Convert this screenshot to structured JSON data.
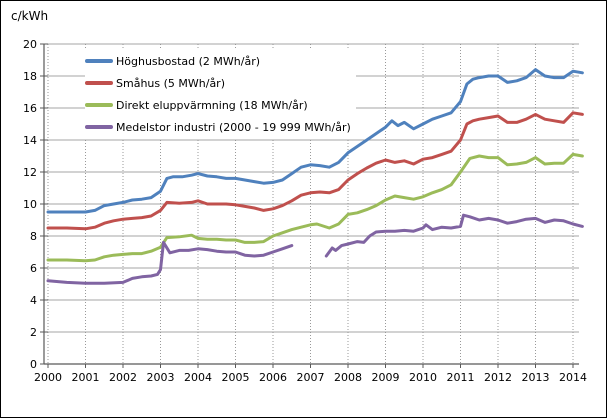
{
  "chart_data": {
    "type": "line",
    "title": "c/kWh",
    "ylabel": "c/kWh",
    "xlabel": "",
    "y_axis": {
      "min": 0,
      "max": 20,
      "tick_step": 2,
      "ticks": [
        0,
        2,
        4,
        6,
        8,
        10,
        12,
        14,
        16,
        18,
        20
      ]
    },
    "x_axis": {
      "min": 2000,
      "max": 2014.4,
      "ticks": [
        2000,
        2001,
        2002,
        2003,
        2004,
        2005,
        2006,
        2007,
        2008,
        2009,
        2010,
        2011,
        2012,
        2013,
        2014
      ]
    },
    "grid": {
      "horizontal": "solid",
      "vertical": "dotted"
    },
    "legend_position": "top-left-inside",
    "colors": {
      "gridline": "#a6a6a6",
      "vgridline": "#999999",
      "axis": "#595959",
      "text": "#000000"
    },
    "series": [
      {
        "name": "Höghusbostad (2 MWh/år)",
        "color": "#4F81BD",
        "segments": [
          [
            [
              2000,
              9.5
            ],
            [
              2000.25,
              9.5
            ],
            [
              2000.5,
              9.5
            ],
            [
              2000.75,
              9.5
            ],
            [
              2001,
              9.5
            ],
            [
              2001.25,
              9.6
            ],
            [
              2001.5,
              9.9
            ],
            [
              2001.75,
              10.0
            ],
            [
              2002,
              10.1
            ],
            [
              2002.25,
              10.25
            ],
            [
              2002.5,
              10.3
            ],
            [
              2002.75,
              10.4
            ],
            [
              2003,
              10.8
            ],
            [
              2003.17,
              11.6
            ],
            [
              2003.33,
              11.7
            ],
            [
              2003.58,
              11.7
            ],
            [
              2003.83,
              11.8
            ],
            [
              2004,
              11.9
            ],
            [
              2004.25,
              11.75
            ],
            [
              2004.5,
              11.7
            ],
            [
              2004.75,
              11.6
            ],
            [
              2005,
              11.6
            ],
            [
              2005.25,
              11.5
            ],
            [
              2005.5,
              11.4
            ],
            [
              2005.75,
              11.3
            ],
            [
              2006,
              11.35
            ],
            [
              2006.25,
              11.5
            ],
            [
              2006.5,
              11.9
            ],
            [
              2006.75,
              12.3
            ],
            [
              2007,
              12.45
            ],
            [
              2007.25,
              12.4
            ],
            [
              2007.5,
              12.3
            ],
            [
              2007.75,
              12.6
            ],
            [
              2008,
              13.2
            ],
            [
              2008.25,
              13.6
            ],
            [
              2008.5,
              14.0
            ],
            [
              2008.75,
              14.4
            ],
            [
              2009,
              14.8
            ],
            [
              2009.17,
              15.2
            ],
            [
              2009.33,
              14.9
            ],
            [
              2009.5,
              15.1
            ],
            [
              2009.75,
              14.7
            ],
            [
              2010,
              15.0
            ],
            [
              2010.25,
              15.3
            ],
            [
              2010.5,
              15.5
            ],
            [
              2010.75,
              15.7
            ],
            [
              2011,
              16.4
            ],
            [
              2011.17,
              17.5
            ],
            [
              2011.33,
              17.8
            ],
            [
              2011.5,
              17.9
            ],
            [
              2011.75,
              18.0
            ],
            [
              2012,
              18.0
            ],
            [
              2012.25,
              17.6
            ],
            [
              2012.5,
              17.7
            ],
            [
              2012.75,
              17.9
            ],
            [
              2013,
              18.4
            ],
            [
              2013.25,
              18.0
            ],
            [
              2013.5,
              17.9
            ],
            [
              2013.75,
              17.9
            ],
            [
              2014,
              18.3
            ],
            [
              2014.25,
              18.2
            ]
          ]
        ]
      },
      {
        "name": "Småhus (5 MWh/år)",
        "color": "#C0504D",
        "segments": [
          [
            [
              2000,
              8.5
            ],
            [
              2000.5,
              8.5
            ],
            [
              2001,
              8.45
            ],
            [
              2001.25,
              8.55
            ],
            [
              2001.5,
              8.8
            ],
            [
              2001.75,
              8.95
            ],
            [
              2002,
              9.05
            ],
            [
              2002.25,
              9.1
            ],
            [
              2002.5,
              9.15
            ],
            [
              2002.75,
              9.25
            ],
            [
              2003,
              9.6
            ],
            [
              2003.17,
              10.1
            ],
            [
              2003.5,
              10.05
            ],
            [
              2003.83,
              10.1
            ],
            [
              2004,
              10.2
            ],
            [
              2004.25,
              10.0
            ],
            [
              2004.5,
              10.0
            ],
            [
              2004.75,
              10.0
            ],
            [
              2005,
              9.95
            ],
            [
              2005.25,
              9.85
            ],
            [
              2005.5,
              9.75
            ],
            [
              2005.75,
              9.6
            ],
            [
              2006,
              9.7
            ],
            [
              2006.25,
              9.9
            ],
            [
              2006.5,
              10.2
            ],
            [
              2006.75,
              10.55
            ],
            [
              2007,
              10.7
            ],
            [
              2007.25,
              10.75
            ],
            [
              2007.5,
              10.7
            ],
            [
              2007.75,
              10.9
            ],
            [
              2008,
              11.5
            ],
            [
              2008.25,
              11.9
            ],
            [
              2008.5,
              12.25
            ],
            [
              2008.75,
              12.55
            ],
            [
              2009,
              12.75
            ],
            [
              2009.25,
              12.6
            ],
            [
              2009.5,
              12.7
            ],
            [
              2009.75,
              12.5
            ],
            [
              2010,
              12.8
            ],
            [
              2010.25,
              12.9
            ],
            [
              2010.5,
              13.1
            ],
            [
              2010.75,
              13.3
            ],
            [
              2011,
              14.0
            ],
            [
              2011.17,
              15.0
            ],
            [
              2011.33,
              15.2
            ],
            [
              2011.5,
              15.3
            ],
            [
              2011.75,
              15.4
            ],
            [
              2012,
              15.5
            ],
            [
              2012.25,
              15.1
            ],
            [
              2012.5,
              15.1
            ],
            [
              2012.75,
              15.3
            ],
            [
              2013,
              15.6
            ],
            [
              2013.25,
              15.3
            ],
            [
              2013.5,
              15.2
            ],
            [
              2013.75,
              15.1
            ],
            [
              2014,
              15.7
            ],
            [
              2014.25,
              15.6
            ]
          ]
        ]
      },
      {
        "name": "Direkt eluppvärmning (18 MWh/år)",
        "color": "#9BBB59",
        "segments": [
          [
            [
              2000,
              6.5
            ],
            [
              2000.5,
              6.5
            ],
            [
              2001,
              6.45
            ],
            [
              2001.25,
              6.5
            ],
            [
              2001.5,
              6.7
            ],
            [
              2001.75,
              6.8
            ],
            [
              2002,
              6.85
            ],
            [
              2002.25,
              6.9
            ],
            [
              2002.5,
              6.9
            ],
            [
              2002.75,
              7.05
            ],
            [
              2003,
              7.3
            ],
            [
              2003.17,
              7.9
            ],
            [
              2003.5,
              7.95
            ],
            [
              2003.83,
              8.05
            ],
            [
              2004,
              7.85
            ],
            [
              2004.25,
              7.8
            ],
            [
              2004.5,
              7.8
            ],
            [
              2004.75,
              7.75
            ],
            [
              2005,
              7.75
            ],
            [
              2005.25,
              7.6
            ],
            [
              2005.5,
              7.6
            ],
            [
              2005.75,
              7.65
            ],
            [
              2006,
              8.0
            ],
            [
              2006.25,
              8.2
            ],
            [
              2006.5,
              8.4
            ],
            [
              2006.75,
              8.55
            ],
            [
              2007,
              8.7
            ],
            [
              2007.17,
              8.75
            ],
            [
              2007.5,
              8.5
            ],
            [
              2007.75,
              8.75
            ],
            [
              2008,
              9.35
            ],
            [
              2008.25,
              9.45
            ],
            [
              2008.5,
              9.65
            ],
            [
              2008.75,
              9.9
            ],
            [
              2009,
              10.25
            ],
            [
              2009.25,
              10.5
            ],
            [
              2009.5,
              10.4
            ],
            [
              2009.75,
              10.3
            ],
            [
              2010,
              10.45
            ],
            [
              2010.25,
              10.7
            ],
            [
              2010.5,
              10.9
            ],
            [
              2010.75,
              11.2
            ],
            [
              2011,
              12.0
            ],
            [
              2011.25,
              12.85
            ],
            [
              2011.5,
              13.0
            ],
            [
              2011.75,
              12.9
            ],
            [
              2012,
              12.9
            ],
            [
              2012.25,
              12.45
            ],
            [
              2012.5,
              12.5
            ],
            [
              2012.75,
              12.6
            ],
            [
              2013,
              12.9
            ],
            [
              2013.25,
              12.5
            ],
            [
              2013.5,
              12.55
            ],
            [
              2013.75,
              12.55
            ],
            [
              2014,
              13.1
            ],
            [
              2014.25,
              13.0
            ]
          ]
        ]
      },
      {
        "name": "Medelstor industri (2000 - 19 999 MWh/år)",
        "color": "#8064A2",
        "segments": [
          [
            [
              2000,
              5.2
            ],
            [
              2000.5,
              5.1
            ],
            [
              2001,
              5.05
            ],
            [
              2001.5,
              5.05
            ],
            [
              2002,
              5.1
            ],
            [
              2002.25,
              5.35
            ],
            [
              2002.5,
              5.45
            ],
            [
              2002.75,
              5.5
            ],
            [
              2002.92,
              5.6
            ],
            [
              2003,
              5.9
            ],
            [
              2003.08,
              7.6
            ],
            [
              2003.25,
              6.95
            ],
            [
              2003.42,
              7.05
            ],
            [
              2003.5,
              7.1
            ],
            [
              2003.75,
              7.1
            ],
            [
              2004,
              7.2
            ],
            [
              2004.25,
              7.15
            ],
            [
              2004.5,
              7.05
            ],
            [
              2004.75,
              7.0
            ],
            [
              2005,
              7.0
            ],
            [
              2005.25,
              6.8
            ],
            [
              2005.5,
              6.75
            ],
            [
              2005.75,
              6.8
            ],
            [
              2006,
              7.0
            ],
            [
              2006.25,
              7.2
            ],
            [
              2006.5,
              7.4
            ]
          ],
          [
            [
              2007.42,
              6.75
            ],
            [
              2007.58,
              7.25
            ],
            [
              2007.67,
              7.1
            ],
            [
              2007.83,
              7.4
            ],
            [
              2008,
              7.5
            ],
            [
              2008.25,
              7.65
            ],
            [
              2008.42,
              7.6
            ],
            [
              2008.58,
              8.0
            ],
            [
              2008.75,
              8.25
            ],
            [
              2009,
              8.3
            ],
            [
              2009.25,
              8.3
            ],
            [
              2009.5,
              8.35
            ],
            [
              2009.75,
              8.3
            ],
            [
              2010,
              8.5
            ],
            [
              2010.08,
              8.7
            ],
            [
              2010.25,
              8.4
            ],
            [
              2010.5,
              8.55
            ],
            [
              2010.75,
              8.5
            ],
            [
              2011,
              8.6
            ],
            [
              2011.08,
              9.3
            ],
            [
              2011.25,
              9.2
            ],
            [
              2011.5,
              9.0
            ],
            [
              2011.75,
              9.1
            ],
            [
              2012,
              9.0
            ],
            [
              2012.25,
              8.8
            ],
            [
              2012.5,
              8.9
            ],
            [
              2012.75,
              9.05
            ],
            [
              2013,
              9.1
            ],
            [
              2013.25,
              8.85
            ],
            [
              2013.5,
              9.0
            ],
            [
              2013.75,
              8.95
            ],
            [
              2014,
              8.75
            ],
            [
              2014.25,
              8.6
            ]
          ]
        ]
      }
    ]
  }
}
